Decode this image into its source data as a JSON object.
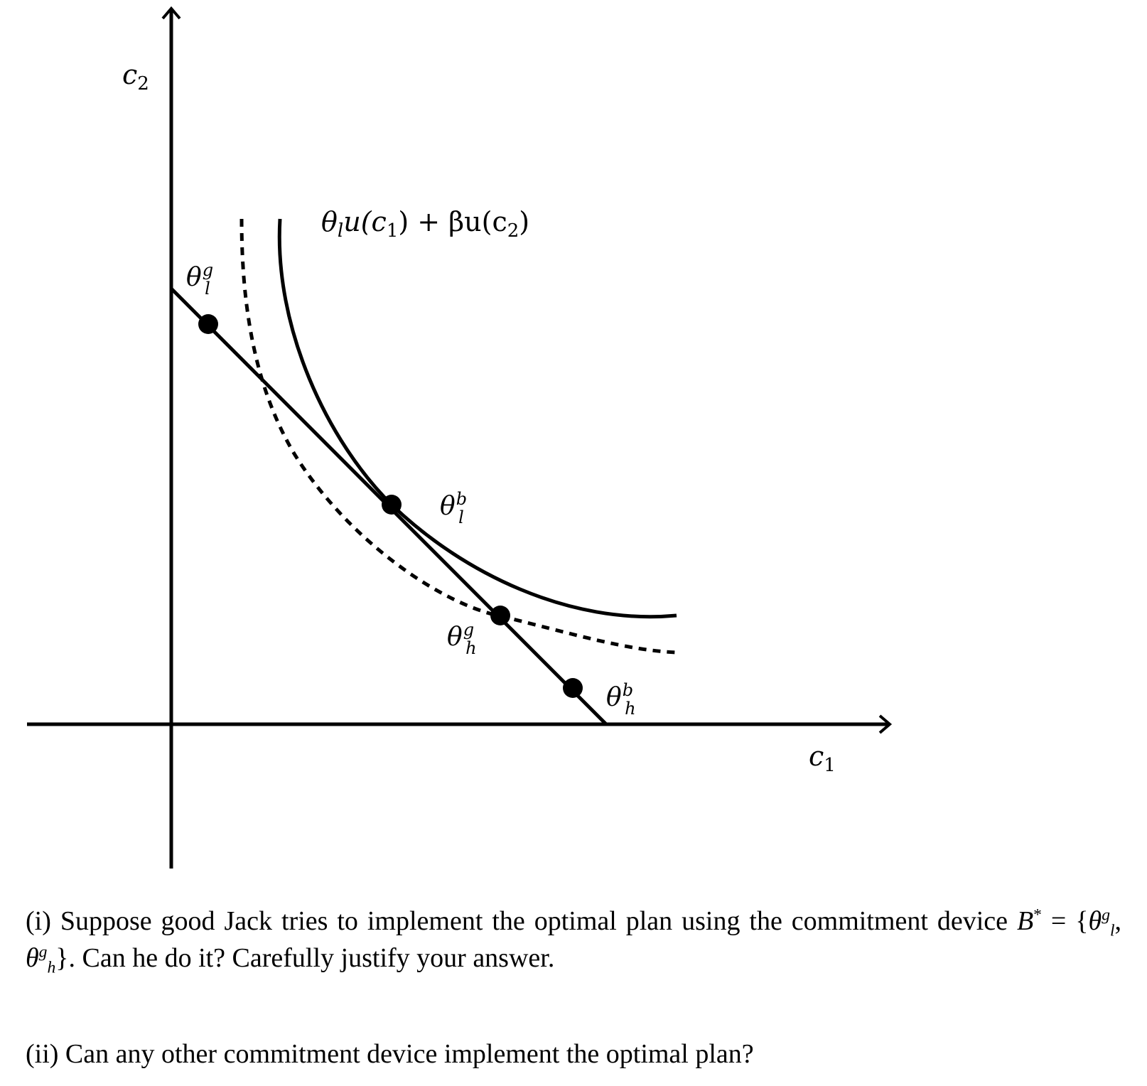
{
  "diagram": {
    "axis_labels": {
      "x": {
        "base": "c",
        "sub": "1"
      },
      "y": {
        "base": "c",
        "sub": "2"
      }
    },
    "curve_label": "θ_l u(c_1) + βu(c_2)",
    "curve_label_parts": {
      "theta": "θ",
      "theta_sub": "l",
      "u1": "u(c",
      "c1_sub": "1",
      "mid": ") + βu(c",
      "c2_sub": "2",
      "close": ")"
    },
    "points": [
      {
        "id": "theta-l-g",
        "sym": "θ",
        "sup": "g",
        "sub": "l"
      },
      {
        "id": "theta-l-b",
        "sym": "θ",
        "sup": "b",
        "sub": "l"
      },
      {
        "id": "theta-h-g",
        "sym": "θ",
        "sup": "g",
        "sub": "h"
      },
      {
        "id": "theta-h-b",
        "sym": "θ",
        "sup": "b",
        "sub": "h"
      }
    ]
  },
  "questions": {
    "q1": {
      "lead": "(i) Suppose good Jack tries to implement the optimal plan using the commitment device ",
      "set_name": "B",
      "set_star": "*",
      "equals": " = {",
      "e1_sym": "θ",
      "e1_sup": "g",
      "e1_sub": "l",
      "comma": ", ",
      "e2_sym": "θ",
      "e2_sup": "g",
      "e2_sub": "h",
      "close": "}",
      "tail": ". Can he do it? Carefully justify your answer."
    },
    "q2": "(ii) Can any other commitment device implement the optimal plan?"
  }
}
